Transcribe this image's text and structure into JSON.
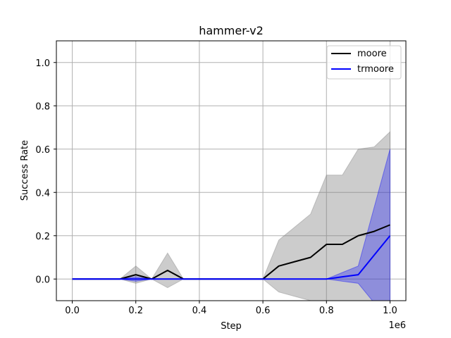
{
  "chart_data": {
    "type": "line",
    "title": "hammer-v2",
    "xlabel": "Step",
    "ylabel": "Success Rate",
    "x_offset_label": "1e6",
    "xlim": [
      -50000,
      1050000
    ],
    "ylim": [
      -0.1,
      1.1
    ],
    "xticks": [
      0,
      200000,
      400000,
      600000,
      800000,
      1000000
    ],
    "xtick_labels": [
      "0.0",
      "0.2",
      "0.4",
      "0.6",
      "0.8",
      "1.0"
    ],
    "yticks": [
      0.0,
      0.2,
      0.4,
      0.6,
      0.8,
      1.0
    ],
    "ytick_labels": [
      "0.0",
      "0.2",
      "0.4",
      "0.6",
      "0.8",
      "1.0"
    ],
    "grid": true,
    "legend_position": "upper right",
    "x": [
      0,
      50000,
      100000,
      150000,
      200000,
      250000,
      300000,
      350000,
      400000,
      450000,
      500000,
      550000,
      600000,
      650000,
      700000,
      750000,
      800000,
      850000,
      900000,
      950000,
      1000000
    ],
    "series": [
      {
        "name": "moore",
        "color": "#000000",
        "band_color": "#808080",
        "mean": [
          0,
          0,
          0,
          0,
          0.02,
          0,
          0.04,
          0,
          0,
          0,
          0,
          0,
          0,
          0.06,
          0.08,
          0.1,
          0.16,
          0.16,
          0.2,
          0.22,
          0.25
        ],
        "upper": [
          0,
          0,
          0,
          0,
          0.06,
          0,
          0.12,
          0,
          0,
          0,
          0,
          0,
          0,
          0.18,
          0.24,
          0.3,
          0.48,
          0.48,
          0.6,
          0.61,
          0.68
        ],
        "lower": [
          0,
          0,
          0,
          0,
          -0.02,
          0,
          -0.04,
          0,
          0,
          0,
          0,
          0,
          0,
          -0.06,
          -0.08,
          -0.1,
          -0.16,
          -0.16,
          -0.2,
          -0.22,
          -0.25
        ]
      },
      {
        "name": "trmoore",
        "color": "#0000ff",
        "band_color": "#0000ff",
        "mean": [
          0,
          0,
          0,
          0,
          0,
          0,
          0,
          0,
          0,
          0,
          0,
          0,
          0,
          0,
          0,
          0,
          0,
          0.01,
          0.02,
          0.11,
          0.2
        ],
        "upper": [
          0,
          0,
          0,
          0,
          0.01,
          0,
          0,
          0,
          0,
          0,
          0,
          0,
          0,
          0,
          0,
          0,
          0,
          0.03,
          0.06,
          0.33,
          0.6
        ],
        "lower": [
          0,
          0,
          0,
          0,
          -0.01,
          0,
          0,
          0,
          0,
          0,
          0,
          0,
          0,
          0,
          0,
          0,
          0,
          -0.01,
          -0.02,
          -0.11,
          -0.2
        ]
      }
    ]
  }
}
